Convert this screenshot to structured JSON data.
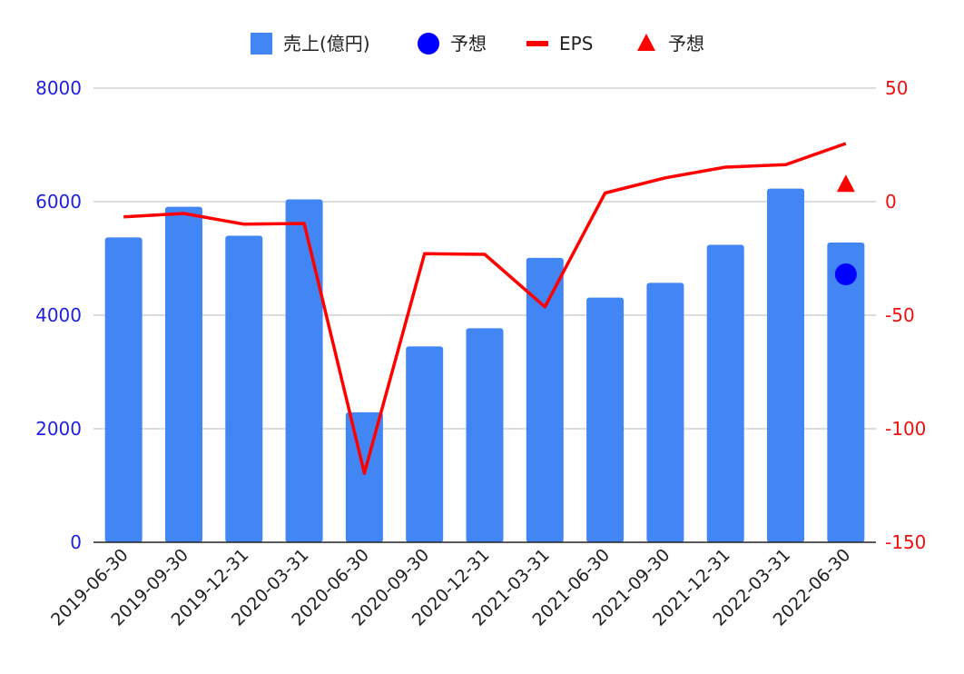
{
  "chart_data": {
    "type": "bar",
    "categories": [
      "2019-06-30",
      "2019-09-30",
      "2019-12-31",
      "2020-03-31",
      "2020-06-30",
      "2020-09-30",
      "2020-12-31",
      "2021-03-31",
      "2021-06-30",
      "2021-09-30",
      "2021-12-31",
      "2022-03-31",
      "2022-06-30"
    ],
    "series": [
      {
        "name": "売上(億円)",
        "type": "bar",
        "axis": "left",
        "color": "#4285f4",
        "values": [
          5370,
          5910,
          5400,
          6040,
          2290,
          3450,
          3770,
          5010,
          4310,
          4570,
          5240,
          6230,
          5280
        ]
      },
      {
        "name": "予想",
        "type": "scatter",
        "marker": "circle",
        "axis": "left",
        "color": "#0000ff",
        "values": [
          null,
          null,
          null,
          null,
          null,
          null,
          null,
          null,
          null,
          null,
          null,
          null,
          4720
        ]
      },
      {
        "name": "EPS",
        "type": "line",
        "axis": "right",
        "color": "#ff0000",
        "values": [
          -6.7,
          -5.2,
          -9.9,
          -9.6,
          -119.6,
          -22.9,
          -23.2,
          -46.3,
          3.8,
          10.5,
          15.2,
          16.3,
          25.6
        ]
      },
      {
        "name": "予想",
        "type": "scatter",
        "marker": "triangle",
        "axis": "right",
        "color": "#ff0000",
        "values": [
          null,
          null,
          null,
          null,
          null,
          null,
          null,
          null,
          null,
          null,
          null,
          null,
          7.5
        ]
      }
    ],
    "y_left": {
      "ylim": [
        0,
        8000
      ],
      "ticks": [
        0,
        2000,
        4000,
        6000,
        8000
      ],
      "color": "#1f1fe0"
    },
    "y_right": {
      "ylim": [
        -150,
        50
      ],
      "ticks": [
        -150,
        -100,
        -50,
        0,
        50
      ],
      "color": "#ee1111"
    },
    "xlabel": "",
    "ylabel": "",
    "grid": true,
    "legend_position": "top-center"
  }
}
